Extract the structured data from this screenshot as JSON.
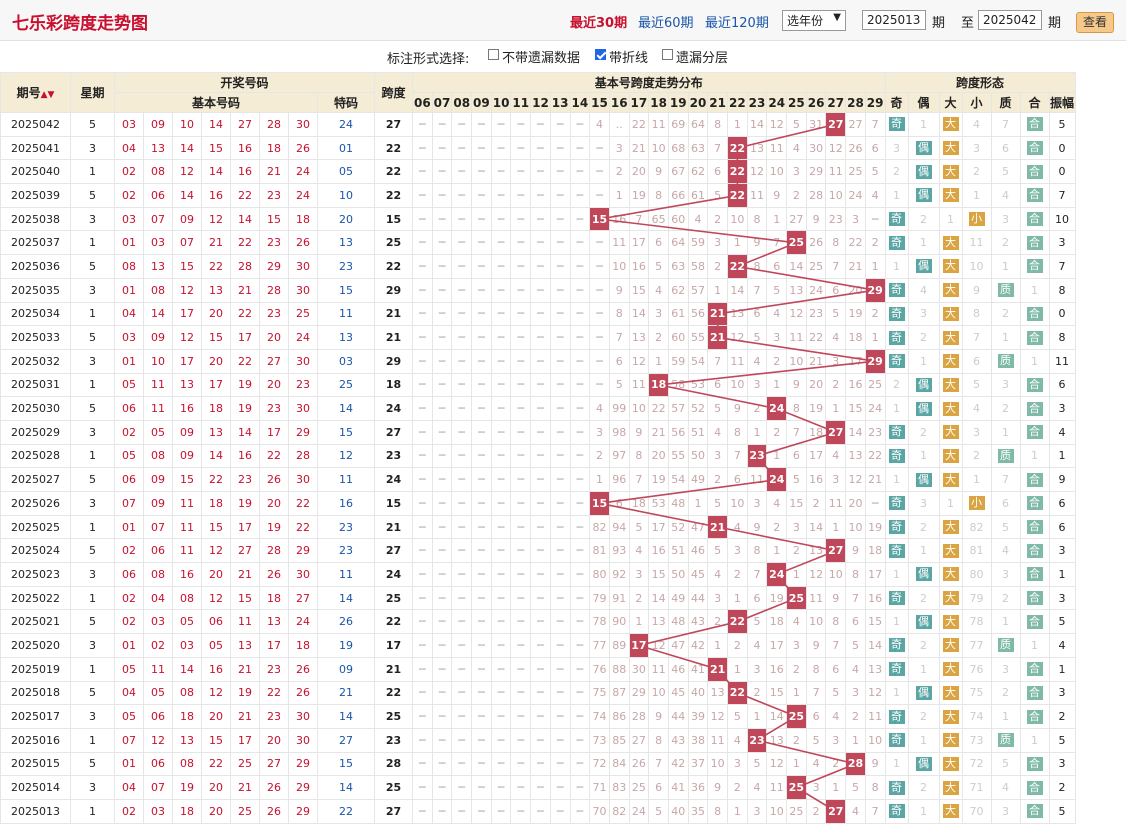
{
  "header": {
    "title": "七乐彩跨度走势图",
    "recent30": "最近30期",
    "recent60": "最近60期",
    "recent120": "最近120期",
    "year_select": "选年份",
    "start_issue": "2025013",
    "qi1": "期",
    "zhi": "至",
    "end_issue": "2025042",
    "qi2": "期",
    "view_btn": "查看"
  },
  "options": {
    "label": "标注形式选择:",
    "no_miss_label": "不带遗漏数据",
    "polyline_label": "带折线",
    "layer_label": "遗漏分层",
    "no_miss_checked": false,
    "polyline_checked": true,
    "layer_checked": false
  },
  "table_header": {
    "issue": "期号",
    "week": "星期",
    "draw": "开奖号码",
    "basic": "基本号码",
    "special": "特码",
    "span": "跨度",
    "dist": "基本号跨度走势分布",
    "shape": "跨度形态",
    "span_cols": [
      "06",
      "07",
      "08",
      "09",
      "10",
      "11",
      "12",
      "13",
      "14",
      "15",
      "16",
      "17",
      "18",
      "19",
      "20",
      "21",
      "22",
      "23",
      "24",
      "25",
      "26",
      "27",
      "28",
      "29"
    ],
    "shape_cols": [
      "奇",
      "偶",
      "大",
      "小",
      "质",
      "合",
      "振幅"
    ]
  },
  "rows": [
    {
      "issue": "2025042",
      "week": "5",
      "nums": [
        "03",
        "09",
        "10",
        "14",
        "27",
        "28",
        "30"
      ],
      "spec": "24",
      "span": 27,
      "miss": [
        "4",
        "..",
        "22",
        "11",
        "69",
        "64",
        "8",
        "1",
        "14",
        "12",
        "5",
        "31",
        "",
        "27",
        "7"
      ],
      "shape": [
        "奇",
        "1",
        "大",
        "4",
        "7",
        "合"
      ],
      "amp": "5"
    },
    {
      "issue": "2025041",
      "week": "3",
      "nums": [
        "04",
        "13",
        "14",
        "15",
        "16",
        "18",
        "26"
      ],
      "spec": "01",
      "span": 22,
      "miss": [
        "3",
        "21",
        "10",
        "68",
        "63",
        "7",
        "",
        "13",
        "11",
        "4",
        "30",
        "12",
        "26",
        "6"
      ],
      "shape": [
        "3",
        "偶",
        "大",
        "3",
        "6",
        "合"
      ],
      "amp": "0"
    },
    {
      "issue": "2025040",
      "week": "1",
      "nums": [
        "02",
        "08",
        "12",
        "14",
        "16",
        "21",
        "24"
      ],
      "spec": "05",
      "span": 22,
      "miss": [
        "2",
        "20",
        "9",
        "67",
        "62",
        "6",
        "",
        "12",
        "10",
        "3",
        "29",
        "11",
        "25",
        "5"
      ],
      "shape": [
        "2",
        "偶",
        "大",
        "2",
        "5",
        "合"
      ],
      "amp": "0"
    },
    {
      "issue": "2025039",
      "week": "5",
      "nums": [
        "02",
        "06",
        "14",
        "16",
        "22",
        "23",
        "24"
      ],
      "spec": "10",
      "span": 22,
      "miss": [
        "1",
        "19",
        "8",
        "66",
        "61",
        "5",
        "",
        "11",
        "9",
        "2",
        "28",
        "10",
        "24",
        "4"
      ],
      "shape": [
        "1",
        "偶",
        "大",
        "1",
        "4",
        "合"
      ],
      "amp": "7"
    },
    {
      "issue": "2025038",
      "week": "3",
      "nums": [
        "03",
        "07",
        "09",
        "12",
        "14",
        "15",
        "18"
      ],
      "spec": "20",
      "span": 15,
      "miss": [
        "",
        "16",
        "7",
        "65",
        "60",
        "4",
        "2",
        "10",
        "8",
        "1",
        "27",
        "9",
        "23",
        "3"
      ],
      "shape": [
        "奇",
        "2",
        "1",
        "小",
        "3",
        "合"
      ],
      "amp": "10"
    },
    {
      "issue": "2025037",
      "week": "1",
      "nums": [
        "01",
        "03",
        "07",
        "21",
        "22",
        "23",
        "26"
      ],
      "spec": "13",
      "span": 25,
      "miss": [
        "11",
        "17",
        "6",
        "64",
        "59",
        "3",
        "1",
        "9",
        "7",
        "",
        "26",
        "8",
        "22",
        "2"
      ],
      "shape": [
        "奇",
        "1",
        "大",
        "11",
        "2",
        "合"
      ],
      "amp": "3"
    },
    {
      "issue": "2025036",
      "week": "5",
      "nums": [
        "08",
        "13",
        "15",
        "22",
        "28",
        "29",
        "30"
      ],
      "spec": "23",
      "span": 22,
      "miss": [
        "10",
        "16",
        "5",
        "63",
        "58",
        "2",
        "",
        "8",
        "6",
        "14",
        "25",
        "7",
        "21",
        "1"
      ],
      "shape": [
        "1",
        "偶",
        "大",
        "10",
        "1",
        "合"
      ],
      "amp": "7"
    },
    {
      "issue": "2025035",
      "week": "3",
      "nums": [
        "01",
        "08",
        "12",
        "13",
        "21",
        "28",
        "30"
      ],
      "spec": "15",
      "span": 29,
      "miss": [
        "9",
        "15",
        "4",
        "62",
        "57",
        "1",
        "14",
        "7",
        "5",
        "13",
        "24",
        "6",
        "20",
        ""
      ],
      "shape": [
        "奇",
        "4",
        "大",
        "9",
        "质",
        "1"
      ],
      "amp": "8"
    },
    {
      "issue": "2025034",
      "week": "1",
      "nums": [
        "04",
        "14",
        "17",
        "20",
        "22",
        "23",
        "25"
      ],
      "spec": "11",
      "span": 21,
      "miss": [
        "8",
        "14",
        "3",
        "61",
        "56",
        "",
        "13",
        "6",
        "4",
        "12",
        "23",
        "5",
        "19",
        "2"
      ],
      "shape": [
        "奇",
        "3",
        "大",
        "8",
        "2",
        "合"
      ],
      "amp": "0"
    },
    {
      "issue": "2025033",
      "week": "5",
      "nums": [
        "03",
        "09",
        "12",
        "15",
        "17",
        "20",
        "24"
      ],
      "spec": "13",
      "span": 21,
      "miss": [
        "7",
        "13",
        "2",
        "60",
        "55",
        "",
        "12",
        "5",
        "3",
        "11",
        "22",
        "4",
        "18",
        "1"
      ],
      "shape": [
        "奇",
        "2",
        "大",
        "7",
        "1",
        "合"
      ],
      "amp": "8"
    },
    {
      "issue": "2025032",
      "week": "3",
      "nums": [
        "01",
        "10",
        "17",
        "20",
        "22",
        "27",
        "30"
      ],
      "spec": "03",
      "span": 29,
      "miss": [
        "6",
        "12",
        "1",
        "59",
        "54",
        "7",
        "11",
        "4",
        "2",
        "10",
        "21",
        "3",
        "17",
        ""
      ],
      "shape": [
        "奇",
        "1",
        "大",
        "6",
        "质",
        "1"
      ],
      "amp": "11"
    },
    {
      "issue": "2025031",
      "week": "1",
      "nums": [
        "05",
        "11",
        "13",
        "17",
        "19",
        "20",
        "23"
      ],
      "spec": "25",
      "span": 18,
      "miss": [
        "5",
        "11",
        "",
        "58",
        "53",
        "6",
        "10",
        "3",
        "1",
        "9",
        "20",
        "2",
        "16",
        "25"
      ],
      "shape": [
        "2",
        "偶",
        "大",
        "5",
        "3",
        "合"
      ],
      "amp": "6"
    },
    {
      "issue": "2025030",
      "week": "5",
      "nums": [
        "06",
        "11",
        "16",
        "18",
        "19",
        "23",
        "30"
      ],
      "spec": "14",
      "span": 24,
      "miss": [
        "4",
        "99",
        "10",
        "22",
        "57",
        "52",
        "5",
        "9",
        "2",
        "",
        "8",
        "19",
        "1",
        "15",
        "24"
      ],
      "shape": [
        "1",
        "偶",
        "大",
        "4",
        "2",
        "合"
      ],
      "amp": "3"
    },
    {
      "issue": "2025029",
      "week": "3",
      "nums": [
        "02",
        "05",
        "09",
        "13",
        "14",
        "17",
        "29"
      ],
      "spec": "15",
      "span": 27,
      "miss": [
        "3",
        "98",
        "9",
        "21",
        "56",
        "51",
        "4",
        "8",
        "1",
        "2",
        "7",
        "18",
        "",
        "14",
        "23"
      ],
      "shape": [
        "奇",
        "2",
        "大",
        "3",
        "1",
        "合"
      ],
      "amp": "4"
    },
    {
      "issue": "2025028",
      "week": "1",
      "nums": [
        "05",
        "08",
        "09",
        "14",
        "16",
        "22",
        "28"
      ],
      "spec": "12",
      "span": 23,
      "miss": [
        "2",
        "97",
        "8",
        "20",
        "55",
        "50",
        "3",
        "7",
        "",
        "1",
        "6",
        "17",
        "4",
        "13",
        "22"
      ],
      "shape": [
        "奇",
        "1",
        "大",
        "2",
        "质",
        "1"
      ],
      "amp": "1"
    },
    {
      "issue": "2025027",
      "week": "5",
      "nums": [
        "06",
        "09",
        "15",
        "22",
        "23",
        "26",
        "30"
      ],
      "spec": "11",
      "span": 24,
      "miss": [
        "1",
        "96",
        "7",
        "19",
        "54",
        "49",
        "2",
        "6",
        "11",
        "",
        "5",
        "16",
        "3",
        "12",
        "21"
      ],
      "shape": [
        "1",
        "偶",
        "大",
        "1",
        "7",
        "合"
      ],
      "amp": "9"
    },
    {
      "issue": "2025026",
      "week": "3",
      "nums": [
        "07",
        "09",
        "11",
        "18",
        "19",
        "20",
        "22"
      ],
      "spec": "16",
      "span": 15,
      "miss": [
        "",
        "6",
        "18",
        "53",
        "48",
        "1",
        "5",
        "10",
        "3",
        "4",
        "15",
        "2",
        "11",
        "20"
      ],
      "shape": [
        "奇",
        "3",
        "1",
        "小",
        "6",
        "合"
      ],
      "amp": "6"
    },
    {
      "issue": "2025025",
      "week": "1",
      "nums": [
        "01",
        "07",
        "11",
        "15",
        "17",
        "19",
        "22"
      ],
      "spec": "23",
      "span": 21,
      "miss": [
        "82",
        "94",
        "5",
        "17",
        "52",
        "47",
        "",
        "4",
        "9",
        "2",
        "3",
        "14",
        "1",
        "10",
        "19"
      ],
      "shape": [
        "奇",
        "2",
        "大",
        "82",
        "5",
        "合"
      ],
      "amp": "6"
    },
    {
      "issue": "2025024",
      "week": "5",
      "nums": [
        "02",
        "06",
        "11",
        "12",
        "27",
        "28",
        "29"
      ],
      "spec": "23",
      "span": 27,
      "miss": [
        "81",
        "93",
        "4",
        "16",
        "51",
        "46",
        "5",
        "3",
        "8",
        "1",
        "2",
        "13",
        "",
        "9",
        "18"
      ],
      "shape": [
        "奇",
        "1",
        "大",
        "81",
        "4",
        "合"
      ],
      "amp": "3"
    },
    {
      "issue": "2025023",
      "week": "3",
      "nums": [
        "06",
        "08",
        "16",
        "20",
        "21",
        "26",
        "30"
      ],
      "spec": "11",
      "span": 24,
      "miss": [
        "80",
        "92",
        "3",
        "15",
        "50",
        "45",
        "4",
        "2",
        "7",
        "",
        "1",
        "12",
        "10",
        "8",
        "17"
      ],
      "shape": [
        "1",
        "偶",
        "大",
        "80",
        "3",
        "合"
      ],
      "amp": "1"
    },
    {
      "issue": "2025022",
      "week": "1",
      "nums": [
        "02",
        "04",
        "08",
        "12",
        "15",
        "18",
        "27"
      ],
      "spec": "14",
      "span": 25,
      "miss": [
        "79",
        "91",
        "2",
        "14",
        "49",
        "44",
        "3",
        "1",
        "6",
        "19",
        "",
        "11",
        "9",
        "7",
        "16"
      ],
      "shape": [
        "奇",
        "2",
        "大",
        "79",
        "2",
        "合"
      ],
      "amp": "3"
    },
    {
      "issue": "2025021",
      "week": "5",
      "nums": [
        "02",
        "03",
        "05",
        "06",
        "11",
        "13",
        "24"
      ],
      "spec": "26",
      "span": 22,
      "miss": [
        "78",
        "90",
        "1",
        "13",
        "48",
        "43",
        "2",
        "",
        "5",
        "18",
        "4",
        "10",
        "8",
        "6",
        "15"
      ],
      "shape": [
        "1",
        "偶",
        "大",
        "78",
        "1",
        "合"
      ],
      "amp": "5"
    },
    {
      "issue": "2025020",
      "week": "3",
      "nums": [
        "01",
        "02",
        "03",
        "05",
        "13",
        "17",
        "18"
      ],
      "spec": "19",
      "span": 17,
      "miss": [
        "77",
        "89",
        "",
        "12",
        "47",
        "42",
        "1",
        "2",
        "4",
        "17",
        "3",
        "9",
        "7",
        "5",
        "14"
      ],
      "shape": [
        "奇",
        "2",
        "大",
        "77",
        "质",
        "1"
      ],
      "amp": "4"
    },
    {
      "issue": "2025019",
      "week": "1",
      "nums": [
        "05",
        "11",
        "14",
        "16",
        "21",
        "23",
        "26"
      ],
      "spec": "09",
      "span": 21,
      "miss": [
        "76",
        "88",
        "30",
        "11",
        "46",
        "41",
        "",
        "1",
        "3",
        "16",
        "2",
        "8",
        "6",
        "4",
        "13"
      ],
      "shape": [
        "奇",
        "1",
        "大",
        "76",
        "3",
        "合"
      ],
      "amp": "1"
    },
    {
      "issue": "2025018",
      "week": "5",
      "nums": [
        "04",
        "05",
        "08",
        "12",
        "19",
        "22",
        "26"
      ],
      "spec": "21",
      "span": 22,
      "miss": [
        "75",
        "87",
        "29",
        "10",
        "45",
        "40",
        "13",
        "",
        "2",
        "15",
        "1",
        "7",
        "5",
        "3",
        "12"
      ],
      "shape": [
        "1",
        "偶",
        "大",
        "75",
        "2",
        "合"
      ],
      "amp": "3"
    },
    {
      "issue": "2025017",
      "week": "3",
      "nums": [
        "05",
        "06",
        "18",
        "20",
        "21",
        "23",
        "30"
      ],
      "spec": "14",
      "span": 25,
      "miss": [
        "74",
        "86",
        "28",
        "9",
        "44",
        "39",
        "12",
        "5",
        "1",
        "14",
        "",
        "6",
        "4",
        "2",
        "11"
      ],
      "shape": [
        "奇",
        "2",
        "大",
        "74",
        "1",
        "合"
      ],
      "amp": "2"
    },
    {
      "issue": "2025016",
      "week": "1",
      "nums": [
        "07",
        "12",
        "13",
        "15",
        "17",
        "20",
        "30"
      ],
      "spec": "27",
      "span": 23,
      "miss": [
        "73",
        "85",
        "27",
        "8",
        "43",
        "38",
        "11",
        "4",
        "",
        "13",
        "2",
        "5",
        "3",
        "1",
        "10"
      ],
      "shape": [
        "奇",
        "1",
        "大",
        "73",
        "质",
        "1"
      ],
      "amp": "5"
    },
    {
      "issue": "2025015",
      "week": "5",
      "nums": [
        "01",
        "06",
        "08",
        "22",
        "25",
        "27",
        "29"
      ],
      "spec": "15",
      "span": 28,
      "miss": [
        "72",
        "84",
        "26",
        "7",
        "42",
        "37",
        "10",
        "3",
        "5",
        "12",
        "1",
        "4",
        "2",
        "",
        "9"
      ],
      "shape": [
        "1",
        "偶",
        "大",
        "72",
        "5",
        "合"
      ],
      "amp": "3"
    },
    {
      "issue": "2025014",
      "week": "3",
      "nums": [
        "04",
        "07",
        "19",
        "20",
        "21",
        "26",
        "29"
      ],
      "spec": "14",
      "span": 25,
      "miss": [
        "71",
        "83",
        "25",
        "6",
        "41",
        "36",
        "9",
        "2",
        "4",
        "11",
        "",
        "3",
        "1",
        "5",
        "8"
      ],
      "shape": [
        "奇",
        "2",
        "大",
        "71",
        "4",
        "合"
      ],
      "amp": "2"
    },
    {
      "issue": "2025013",
      "week": "1",
      "nums": [
        "02",
        "03",
        "18",
        "20",
        "25",
        "26",
        "29"
      ],
      "spec": "22",
      "span": 27,
      "miss": [
        "70",
        "82",
        "24",
        "5",
        "40",
        "35",
        "8",
        "1",
        "3",
        "10",
        "25",
        "2",
        "",
        "4",
        "7"
      ],
      "shape": [
        "奇",
        "1",
        "大",
        "70",
        "3",
        "合"
      ],
      "amp": "5"
    }
  ]
}
